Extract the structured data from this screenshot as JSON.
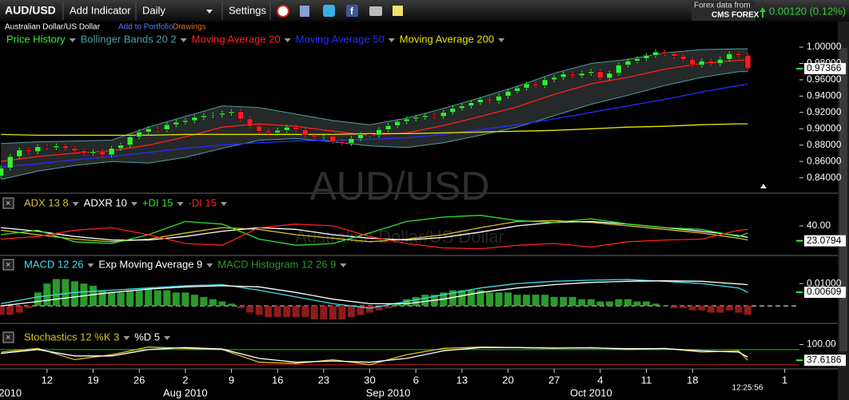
{
  "toolbar": {
    "symbol": "AUD/USD",
    "add_indicator": "Add Indicator",
    "interval": "Daily",
    "settings": "Settings",
    "data_from": "Forex data from",
    "provider": "CMS FOREX",
    "change": "0.00120 (0.12%)"
  },
  "subbar": {
    "name": "Australian Dollar/US Dollar",
    "portfolio": "Add to Portfolio",
    "drawings": "Drawings"
  },
  "x_axis": {
    "xlim": [
      -0.1,
      86.6
    ],
    "xticks": [
      {
        "value": 5,
        "label": "12"
      },
      {
        "value": 10,
        "label": "19"
      },
      {
        "value": 15,
        "label": "26"
      },
      {
        "value": 20,
        "label": "2"
      },
      {
        "value": 25,
        "label": "9"
      },
      {
        "value": 30,
        "label": "16"
      },
      {
        "value": 35,
        "label": "23"
      },
      {
        "value": 40,
        "label": "30"
      },
      {
        "value": 45,
        "label": "6"
      },
      {
        "value": 50,
        "label": "13"
      },
      {
        "value": 55,
        "label": "20"
      },
      {
        "value": 60,
        "label": "27"
      },
      {
        "value": 65,
        "label": "4"
      },
      {
        "value": 70,
        "label": "11"
      },
      {
        "value": 75,
        "label": "18"
      },
      {
        "value": 85,
        "label": "1"
      }
    ],
    "month_ticks": [
      {
        "value": 1,
        "label": "2010"
      },
      {
        "value": 20,
        "label": "Aug 2010"
      },
      {
        "value": 42,
        "label": "Sep 2010"
      },
      {
        "value": 64,
        "label": "Oct 2010"
      }
    ],
    "time": "12:25:56",
    "days": [
      0,
      1,
      2,
      3,
      4,
      5,
      6,
      7,
      8,
      9,
      10,
      11,
      12,
      13,
      14,
      15,
      16,
      17,
      18,
      19,
      20,
      21,
      22,
      23,
      24,
      25,
      26,
      27,
      28,
      29,
      30,
      31,
      32,
      33,
      34,
      35,
      36,
      37,
      38,
      39,
      40,
      41,
      42,
      43,
      44,
      45,
      46,
      47,
      48,
      49,
      50,
      51,
      52,
      53,
      54,
      55,
      56,
      57,
      58,
      59,
      60,
      61,
      62,
      63,
      64,
      65,
      66,
      67,
      68,
      69,
      70,
      71,
      72,
      73,
      74,
      75,
      76,
      77,
      78,
      79,
      80,
      81
    ],
    "samples": [
      0,
      4,
      8,
      12,
      16,
      20,
      24,
      28,
      32,
      36,
      40,
      44,
      48,
      52,
      56,
      60,
      64,
      68,
      72,
      76,
      80,
      81
    ]
  },
  "chart_data": [
    {
      "type": "candlestick",
      "watermark": "AUD/USD",
      "watermark_subtitle": "Australian Dollar/US Dollar",
      "ylim": [
        0.823,
        1.001
      ],
      "yticks": [
        {
          "value": 0.84,
          "label": "0.84000"
        },
        {
          "value": 0.86,
          "label": "0.86000"
        },
        {
          "value": 0.88,
          "label": "0.88000"
        },
        {
          "value": 0.9,
          "label": "0.90000"
        },
        {
          "value": 0.92,
          "label": "0.92000"
        },
        {
          "value": 0.94,
          "label": "0.94000"
        },
        {
          "value": 0.96,
          "label": "0.96000"
        },
        {
          "value": 0.98,
          "label": "0.98000"
        },
        {
          "value": 1.0,
          "label": "1.00000"
        }
      ],
      "last": 0.97366,
      "series": [
        {
          "name": "Price History",
          "type": "candlestick",
          "color": "#33ee33",
          "down_color": "#ff1a1a",
          "open": [
            0.842,
            0.852,
            0.866,
            0.874,
            0.872,
            0.878,
            0.877,
            0.879,
            0.876,
            0.873,
            0.87,
            0.872,
            0.868,
            0.876,
            0.88,
            0.89,
            0.896,
            0.9,
            0.899,
            0.905,
            0.908,
            0.91,
            0.914,
            0.916,
            0.917,
            0.919,
            0.921,
            0.912,
            0.903,
            0.897,
            0.895,
            0.898,
            0.902,
            0.899,
            0.892,
            0.89,
            0.891,
            0.884,
            0.882,
            0.888,
            0.893,
            0.892,
            0.899,
            0.904,
            0.909,
            0.912,
            0.914,
            0.916,
            0.915,
            0.92,
            0.925,
            0.928,
            0.932,
            0.936,
            0.934,
            0.94,
            0.946,
            0.95,
            0.955,
            0.953,
            0.96,
            0.963,
            0.967,
            0.965,
            0.968,
            0.97,
            0.962,
            0.968,
            0.978,
            0.983,
            0.986,
            0.99,
            0.994,
            0.992,
            0.989,
            0.985,
            0.978,
            0.983,
            0.98,
            0.985,
            0.992,
            0.99
          ],
          "high": [
            0.855,
            0.869,
            0.877,
            0.877,
            0.881,
            0.881,
            0.882,
            0.882,
            0.879,
            0.876,
            0.875,
            0.875,
            0.879,
            0.883,
            0.893,
            0.899,
            0.903,
            0.903,
            0.908,
            0.911,
            0.913,
            0.917,
            0.919,
            0.92,
            0.922,
            0.924,
            0.924,
            0.915,
            0.906,
            0.9,
            0.901,
            0.905,
            0.905,
            0.902,
            0.895,
            0.894,
            0.894,
            0.887,
            0.891,
            0.896,
            0.896,
            0.902,
            0.907,
            0.912,
            0.915,
            0.917,
            0.919,
            0.919,
            0.923,
            0.928,
            0.931,
            0.935,
            0.939,
            0.939,
            0.943,
            0.949,
            0.953,
            0.958,
            0.958,
            0.963,
            0.966,
            0.97,
            0.97,
            0.971,
            0.973,
            0.973,
            0.971,
            0.981,
            0.986,
            0.989,
            0.993,
            0.997,
            0.997,
            0.995,
            0.992,
            0.988,
            0.986,
            0.986,
            0.988,
            0.995,
            0.995,
            0.993
          ],
          "low": [
            0.839,
            0.849,
            0.863,
            0.869,
            0.869,
            0.874,
            0.874,
            0.873,
            0.87,
            0.867,
            0.867,
            0.865,
            0.865,
            0.873,
            0.877,
            0.887,
            0.893,
            0.896,
            0.896,
            0.902,
            0.905,
            0.907,
            0.911,
            0.913,
            0.914,
            0.916,
            0.909,
            0.9,
            0.894,
            0.892,
            0.892,
            0.895,
            0.896,
            0.889,
            0.887,
            0.887,
            0.881,
            0.879,
            0.879,
            0.885,
            0.889,
            0.889,
            0.896,
            0.901,
            0.906,
            0.909,
            0.911,
            0.912,
            0.912,
            0.917,
            0.922,
            0.925,
            0.929,
            0.931,
            0.931,
            0.937,
            0.943,
            0.947,
            0.95,
            0.95,
            0.957,
            0.96,
            0.962,
            0.962,
            0.965,
            0.959,
            0.959,
            0.965,
            0.975,
            0.98,
            0.983,
            0.987,
            0.989,
            0.986,
            0.982,
            0.975,
            0.975,
            0.977,
            0.977,
            0.982,
            0.987,
            0.971
          ],
          "close": [
            0.852,
            0.866,
            0.874,
            0.872,
            0.878,
            0.877,
            0.879,
            0.876,
            0.873,
            0.87,
            0.872,
            0.868,
            0.876,
            0.88,
            0.89,
            0.896,
            0.9,
            0.899,
            0.905,
            0.908,
            0.91,
            0.914,
            0.916,
            0.917,
            0.919,
            0.921,
            0.912,
            0.903,
            0.897,
            0.895,
            0.898,
            0.902,
            0.899,
            0.892,
            0.89,
            0.891,
            0.884,
            0.882,
            0.888,
            0.893,
            0.892,
            0.899,
            0.904,
            0.909,
            0.912,
            0.914,
            0.916,
            0.915,
            0.92,
            0.925,
            0.928,
            0.932,
            0.936,
            0.934,
            0.94,
            0.946,
            0.95,
            0.955,
            0.953,
            0.96,
            0.963,
            0.967,
            0.965,
            0.968,
            0.97,
            0.962,
            0.968,
            0.978,
            0.983,
            0.986,
            0.99,
            0.994,
            0.992,
            0.989,
            0.985,
            0.978,
            0.983,
            0.98,
            0.985,
            0.992,
            0.99,
            0.974
          ]
        },
        {
          "name": "Bollinger Bands 20 2",
          "type": "band",
          "color": "#4f9f9f",
          "fill": "#2e3333",
          "upper": [
            0.882,
            0.884,
            0.885,
            0.886,
            0.902,
            0.915,
            0.928,
            0.926,
            0.918,
            0.91,
            0.905,
            0.913,
            0.925,
            0.938,
            0.952,
            0.968,
            0.98,
            0.985,
            0.993,
            0.997,
            0.998,
            0.998
          ],
          "lower": [
            0.838,
            0.848,
            0.855,
            0.86,
            0.858,
            0.865,
            0.876,
            0.886,
            0.888,
            0.884,
            0.879,
            0.877,
            0.883,
            0.892,
            0.902,
            0.916,
            0.93,
            0.941,
            0.953,
            0.963,
            0.97,
            0.97
          ]
        },
        {
          "name": "Moving Average 20",
          "type": "line",
          "color": "#ff2020",
          "values": [
            0.86,
            0.866,
            0.87,
            0.873,
            0.88,
            0.89,
            0.902,
            0.906,
            0.903,
            0.897,
            0.892,
            0.895,
            0.904,
            0.915,
            0.927,
            0.942,
            0.955,
            0.963,
            0.973,
            0.98,
            0.984,
            0.984
          ]
        },
        {
          "name": "Moving Average 50",
          "type": "line",
          "color": "#2a2aff",
          "values": [
            0.853,
            0.857,
            0.862,
            0.866,
            0.871,
            0.876,
            0.88,
            0.883,
            0.885,
            0.886,
            0.887,
            0.889,
            0.893,
            0.899,
            0.905,
            0.912,
            0.92,
            0.928,
            0.936,
            0.945,
            0.953,
            0.955
          ]
        },
        {
          "name": "Moving Average 200",
          "type": "line",
          "color": "#e8e800",
          "values": [
            0.893,
            0.892,
            0.892,
            0.892,
            0.892,
            0.893,
            0.893,
            0.893,
            0.893,
            0.893,
            0.894,
            0.894,
            0.895,
            0.896,
            0.897,
            0.898,
            0.9,
            0.902,
            0.903,
            0.905,
            0.906,
            0.906
          ]
        }
      ]
    },
    {
      "type": "line",
      "ylim": [
        10,
        59
      ],
      "yticks": [
        {
          "value": 40,
          "label": "40.00"
        }
      ],
      "last": 23.0794,
      "series": [
        {
          "name": "ADX 13 8",
          "type": "line",
          "color": "#d8c020",
          "values": [
            35,
            30,
            25,
            22,
            25,
            32,
            38,
            36,
            30,
            26,
            22,
            25,
            30,
            38,
            45,
            46,
            44,
            40,
            36,
            32,
            26,
            24
          ]
        },
        {
          "name": "ADXR 10",
          "type": "line",
          "color": "#ffffff",
          "values": [
            38,
            34,
            28,
            24,
            24,
            28,
            34,
            38,
            36,
            30,
            26,
            24,
            27,
            33,
            40,
            44,
            45,
            42,
            38,
            34,
            29,
            27
          ]
        },
        {
          "name": "+DI 15",
          "type": "line",
          "color": "#30e030",
          "values": [
            30,
            35,
            22,
            20,
            30,
            45,
            42,
            25,
            18,
            20,
            32,
            45,
            50,
            52,
            46,
            44,
            48,
            42,
            38,
            36,
            28,
            32
          ]
        },
        {
          "name": "-DI 15",
          "type": "line",
          "color": "#ff2020",
          "values": [
            25,
            28,
            35,
            38,
            30,
            20,
            18,
            38,
            42,
            40,
            28,
            20,
            15,
            14,
            18,
            20,
            16,
            22,
            24,
            25,
            35,
            36
          ]
        }
      ]
    },
    {
      "type": "line",
      "ylim": [
        -0.006,
        0.0136
      ],
      "yticks": [
        {
          "value": 0.01,
          "label": "0.01000"
        }
      ],
      "last": 0.00609,
      "levels": [
        0
      ],
      "level_colors": [
        "#ffffff"
      ],
      "level_style": "dashed",
      "series": [
        {
          "name": "MACD 12 26",
          "type": "line",
          "color": "#40e0f0",
          "values": [
            0.001,
            0.004,
            0.006,
            0.007,
            0.008,
            0.009,
            0.0095,
            0.007,
            0.004,
            0.001,
            -0.001,
            0.002,
            0.005,
            0.008,
            0.01,
            0.011,
            0.0115,
            0.0118,
            0.011,
            0.01,
            0.008,
            0.00609
          ]
        },
        {
          "name": "Exp Moving Average 9",
          "type": "line",
          "color": "#ffffff",
          "values": [
            0,
            0.002,
            0.004,
            0.006,
            0.0075,
            0.0085,
            0.009,
            0.0085,
            0.006,
            0.003,
            0.001,
            0.001,
            0.003,
            0.006,
            0.008,
            0.0095,
            0.0105,
            0.011,
            0.0112,
            0.011,
            0.0098,
            0.0095
          ]
        },
        {
          "name": "MACD Histogram 12 26 9",
          "type": "histogram",
          "color": "#2a9a2a",
          "down_color": "#8e1b1b",
          "values": [
            -0.004,
            -0.004,
            -0.003,
            -0.001,
            0.006,
            0.01,
            0.012,
            0.012,
            0.011,
            0.01,
            0.009,
            0.007,
            0.006,
            0.006,
            0.007,
            0.007,
            0.008,
            0.007,
            0.007,
            0.006,
            0.006,
            0.005,
            0.004,
            0.003,
            0.002,
            0.001,
            -0.001,
            -0.003,
            -0.004,
            -0.005,
            -0.005,
            -0.005,
            -0.005,
            -0.005,
            -0.006,
            -0.006,
            -0.006,
            -0.006,
            -0.005,
            -0.004,
            -0.003,
            -0.002,
            -0.001,
            0.001,
            0.003,
            0.004,
            0.005,
            0.005,
            0.006,
            0.007,
            0.007,
            0.007,
            0.007,
            0.006,
            0.006,
            0.006,
            0.005,
            0.005,
            0.005,
            0.005,
            0.004,
            0.004,
            0.004,
            0.003,
            0.003,
            0.002,
            0.002,
            0.003,
            0.003,
            0.002,
            0.002,
            0.001,
            0,
            -0.001,
            -0.001,
            -0.002,
            -0.002,
            -0.003,
            -0.003,
            -0.002,
            -0.003,
            -0.004
          ]
        }
      ]
    },
    {
      "type": "line",
      "ylim": [
        10,
        130
      ],
      "yticks": [
        {
          "value": 100,
          "label": "100.00"
        }
      ],
      "last": 37.6186,
      "levels": [
        80,
        20
      ],
      "level_colors": [
        "#20c020",
        "#d02020"
      ],
      "level_style": "solid",
      "series": [
        {
          "name": "Stochastics 12 %K 3",
          "type": "line",
          "color": "#d8c020",
          "values": [
            70,
            85,
            40,
            60,
            90,
            85,
            80,
            30,
            25,
            40,
            20,
            60,
            85,
            90,
            88,
            85,
            88,
            80,
            85,
            70,
            75,
            37.6186
          ]
        },
        {
          "name": "%D 5",
          "type": "line",
          "color": "#ffffff",
          "values": [
            65,
            80,
            55,
            55,
            80,
            88,
            82,
            45,
            30,
            35,
            30,
            45,
            75,
            88,
            88,
            86,
            86,
            84,
            84,
            75,
            70,
            50
          ]
        }
      ]
    }
  ]
}
